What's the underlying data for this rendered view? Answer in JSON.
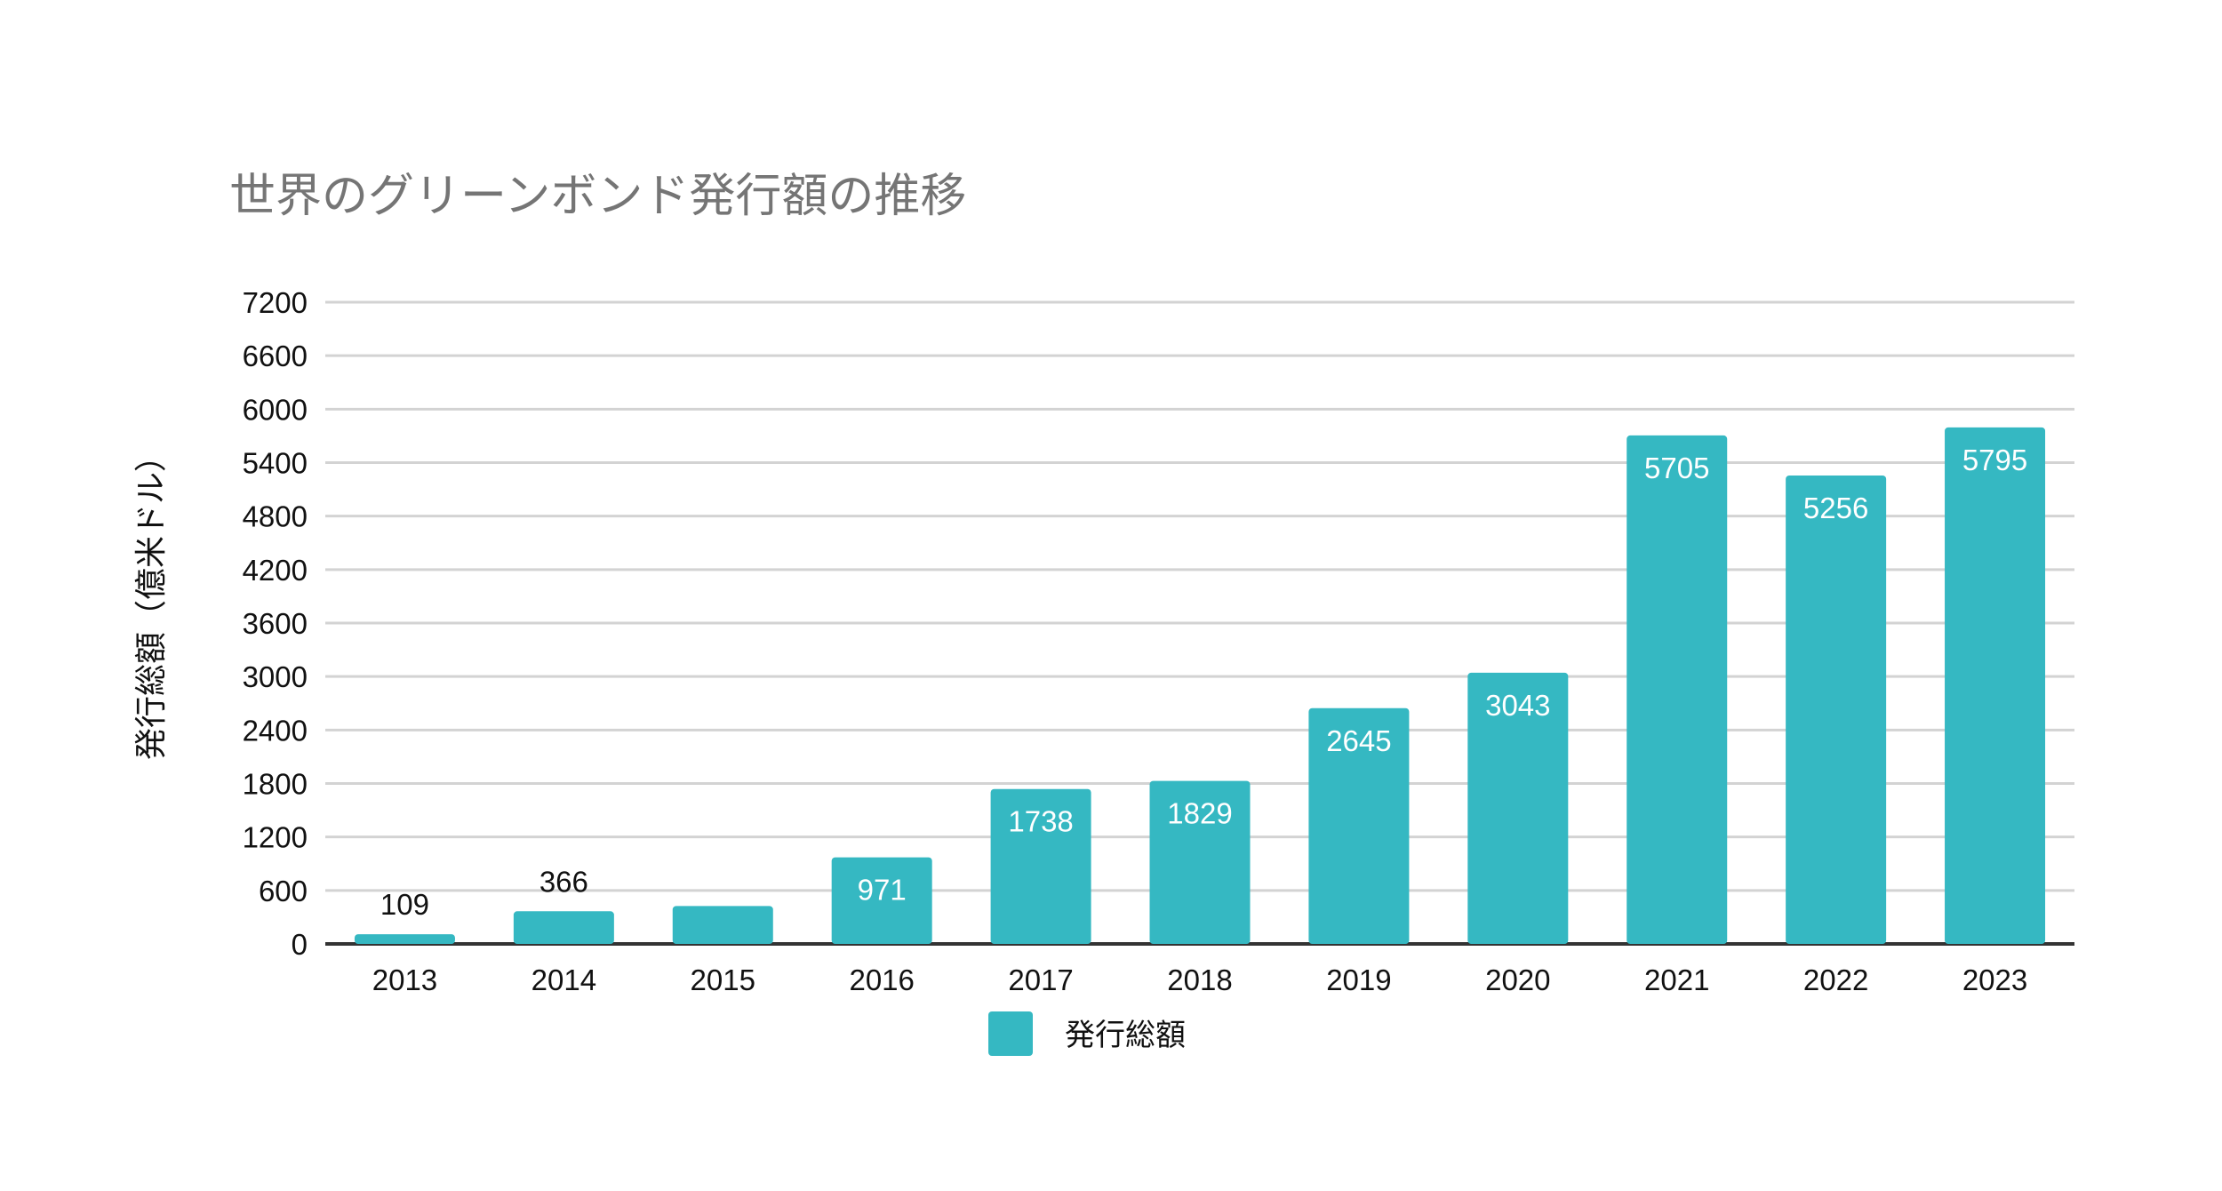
{
  "chart_data": {
    "type": "bar",
    "title": "世界のグリーンボンド発行額の推移",
    "xlabel": "",
    "ylabel": "発行総額（億米ドル）",
    "categories": [
      "2013",
      "2014",
      "2015",
      "2016",
      "2017",
      "2018",
      "2019",
      "2020",
      "2021",
      "2022",
      "2023"
    ],
    "series": [
      {
        "name": "発行総額",
        "values": [
          109,
          366,
          425,
          971,
          1738,
          1829,
          2645,
          3043,
          5705,
          5256,
          5795
        ],
        "labels": [
          "109",
          "366",
          "",
          "971",
          "1738",
          "1829",
          "2645",
          "3043",
          "5705",
          "5256",
          "5795"
        ]
      }
    ],
    "yticks": [
      "0",
      "600",
      "1200",
      "1800",
      "2400",
      "3000",
      "3600",
      "4200",
      "4800",
      "5400",
      "6000",
      "6600",
      "7200"
    ],
    "ylim": [
      0,
      7200
    ],
    "grid": true,
    "legend": "bottom-center",
    "colors": {
      "bar": "#35b8c2",
      "grid": "#d3d3d3",
      "axis": "#333333",
      "title": "#757575"
    }
  }
}
